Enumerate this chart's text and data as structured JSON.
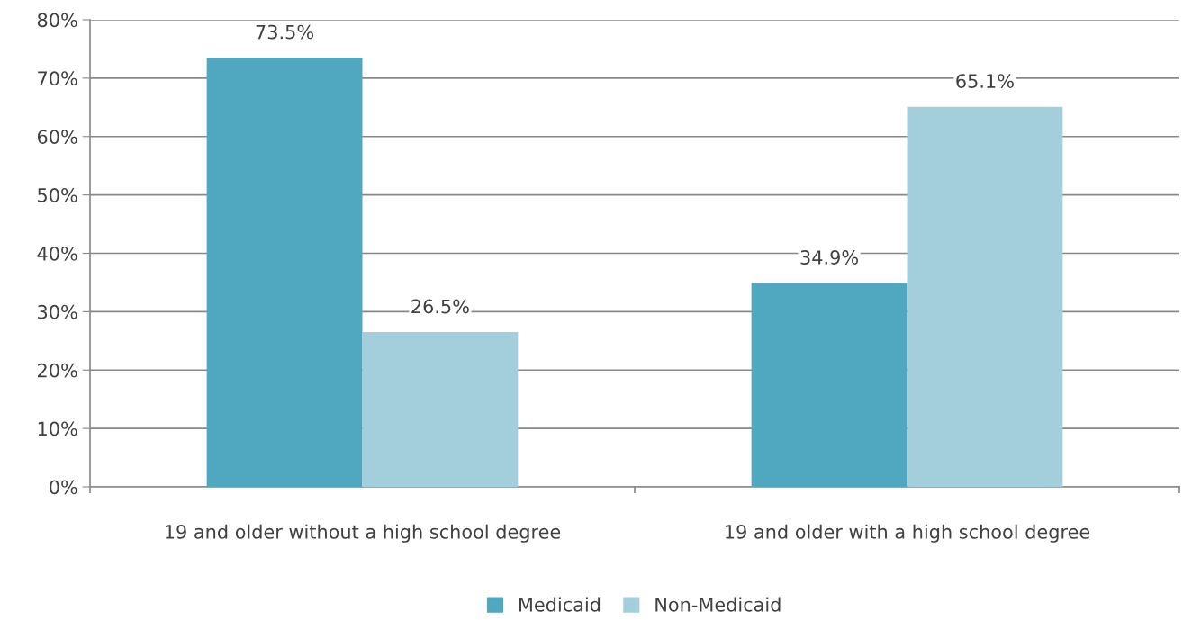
{
  "chart_data": {
    "type": "bar",
    "categories": [
      "19 and older without a high school degree",
      "19 and older with a high school degree"
    ],
    "series": [
      {
        "name": "Medicaid",
        "color": "#4fa8bf",
        "values": [
          73.5,
          34.9
        ],
        "value_labels": [
          "73.5%",
          "34.9%"
        ]
      },
      {
        "name": "Non-Medicaid",
        "color": "#a3cfdd",
        "values": [
          26.5,
          65.1
        ],
        "value_labels": [
          "26.5%",
          "65.1%"
        ]
      }
    ],
    "ylim": [
      0,
      80
    ],
    "yticks": [
      {
        "value": 0,
        "label": "0%"
      },
      {
        "value": 10,
        "label": "10%"
      },
      {
        "value": 20,
        "label": "20%"
      },
      {
        "value": 30,
        "label": "30%"
      },
      {
        "value": 40,
        "label": "40%"
      },
      {
        "value": 50,
        "label": "50%"
      },
      {
        "value": 60,
        "label": "60%"
      },
      {
        "value": 70,
        "label": "70%"
      },
      {
        "value": 80,
        "label": "80%"
      }
    ],
    "grid": "y",
    "legend": "bottom"
  }
}
